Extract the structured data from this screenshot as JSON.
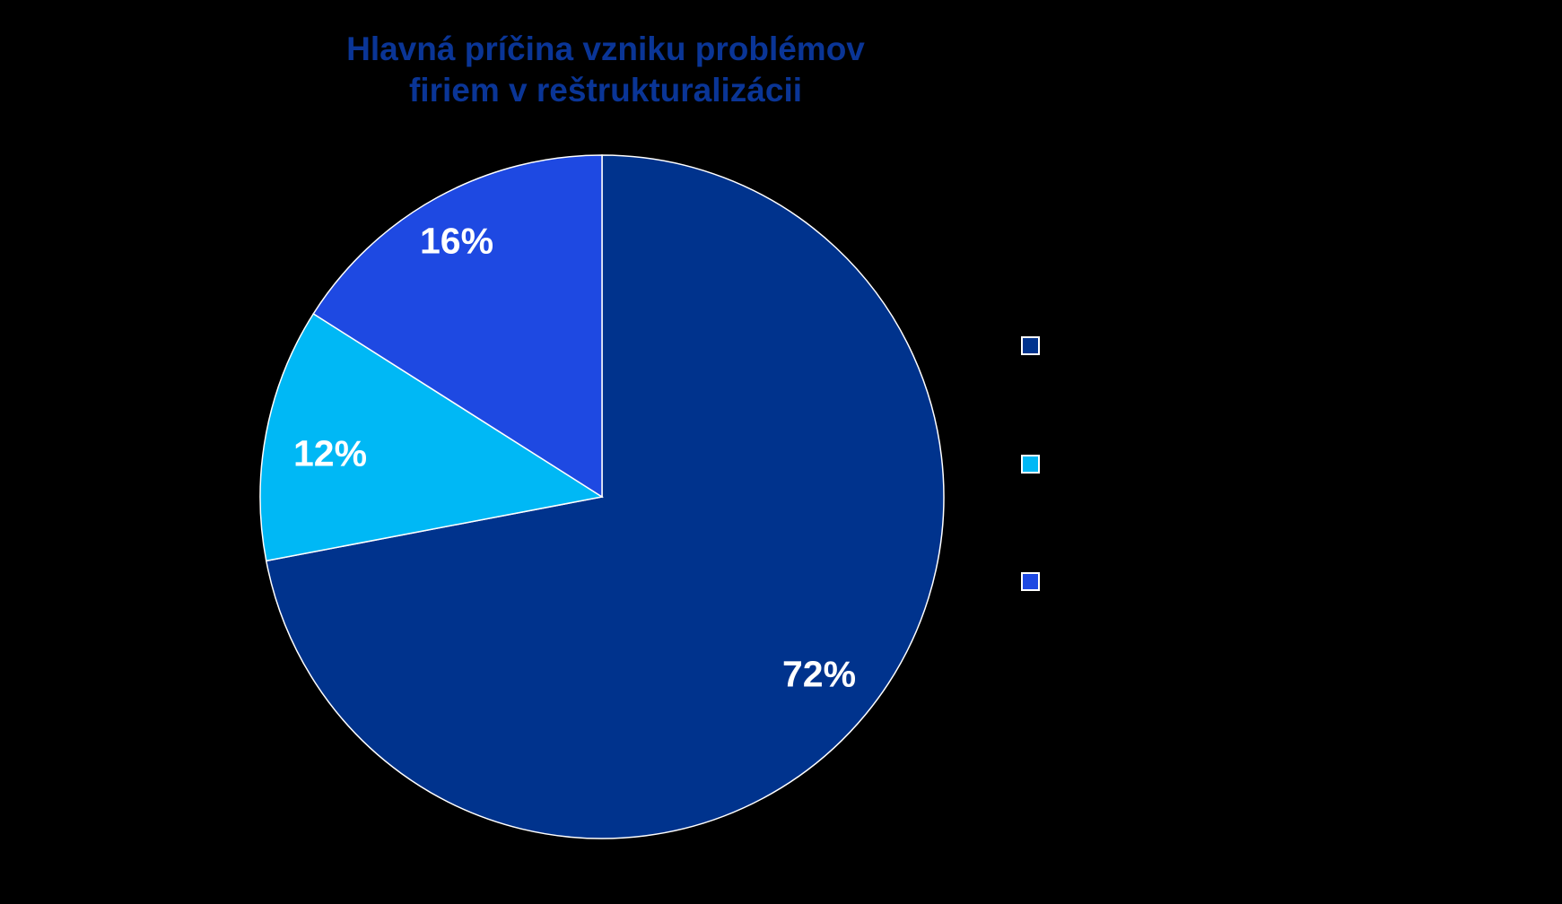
{
  "chart_data": {
    "type": "pie",
    "title": "Hlavná príčina vzniku problémov firiem v reštrukturalizácii",
    "categories": [
      "",
      "",
      ""
    ],
    "values": [
      72,
      12,
      16
    ],
    "labels": [
      "72%",
      "12%",
      "16%"
    ],
    "colors": [
      "#00338D",
      "#00B8F5",
      "#1E49E2"
    ],
    "start_angle": "12 o'clock, clockwise",
    "legend_position": "right",
    "legend_entries_text_visible": false
  },
  "title_line1": "Hlavná príčina vzniku problémov",
  "title_line2": "firiem v reštrukturalizácii",
  "legend": [
    {
      "label": "",
      "color": "#00338D"
    },
    {
      "label": "",
      "color": "#00B8F5"
    },
    {
      "label": "",
      "color": "#1E49E2"
    }
  ]
}
